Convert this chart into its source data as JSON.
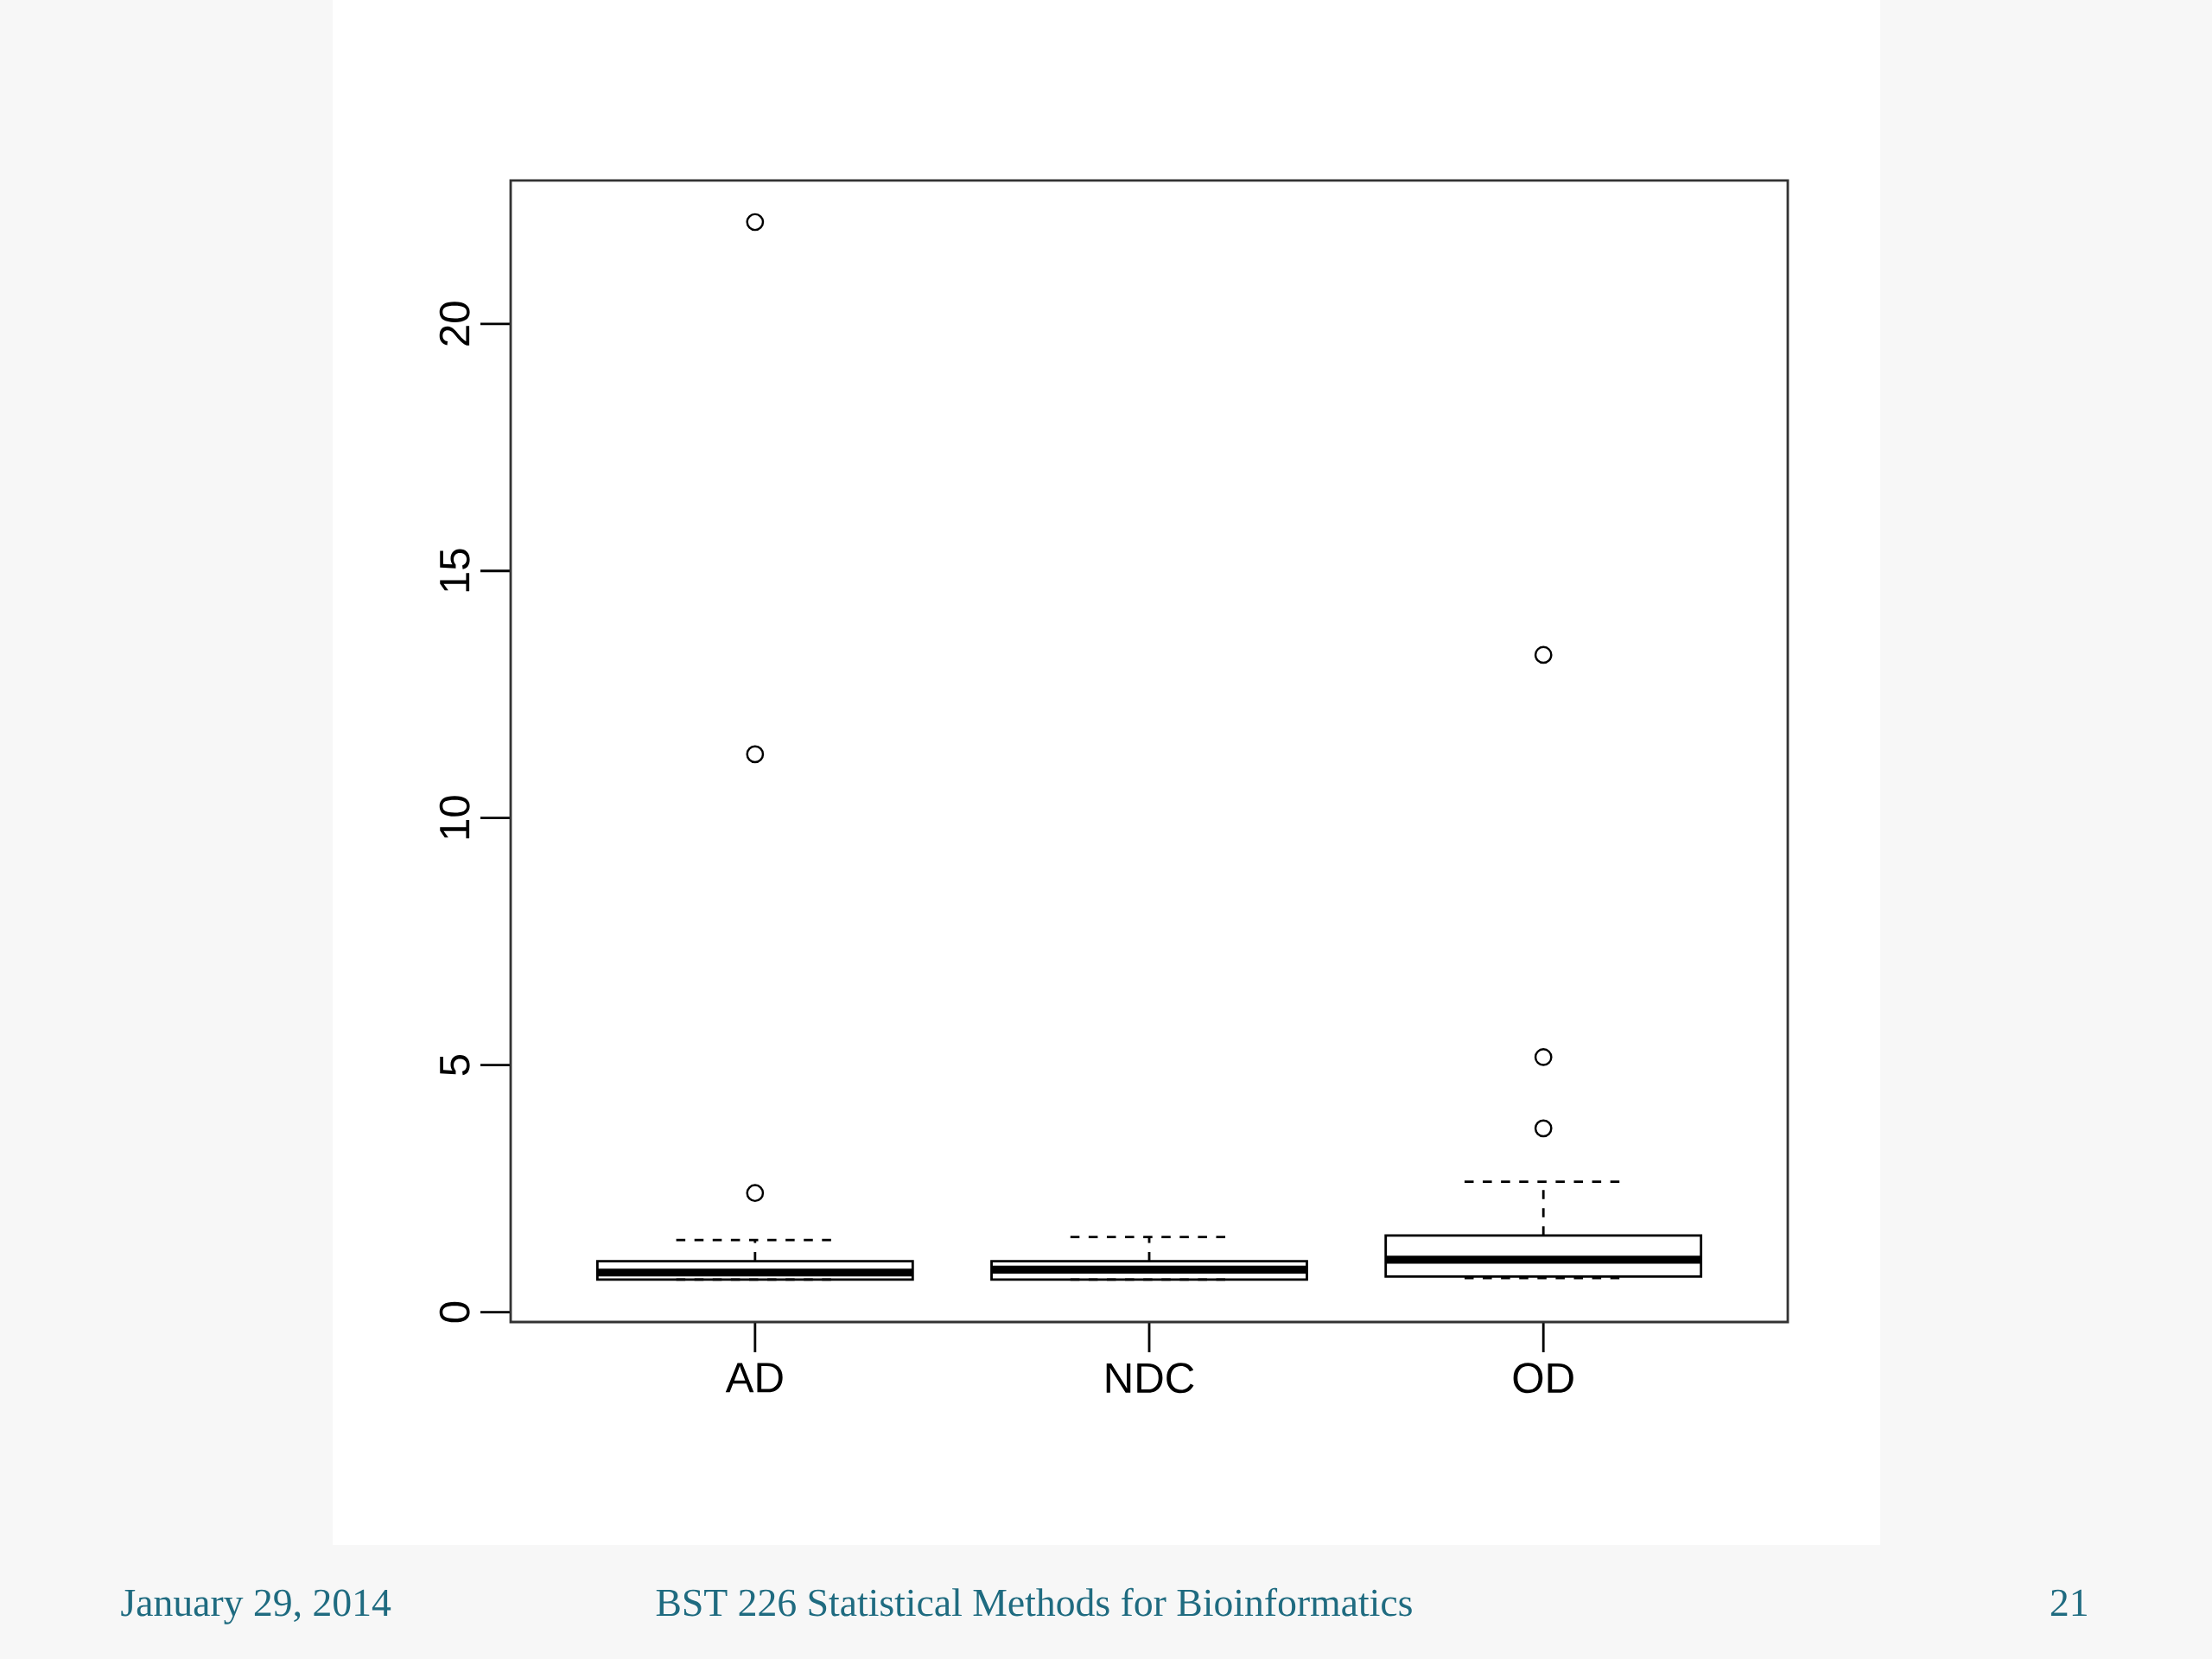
{
  "chart_data": {
    "type": "box",
    "categories": [
      "AD",
      "NDC",
      "OD"
    ],
    "boxes": [
      {
        "low": 0.66,
        "q1": 0.66,
        "median": 0.8,
        "q3": 1.03,
        "high": 1.46,
        "outliers": [
          2.41,
          11.29,
          22.06
        ]
      },
      {
        "low": 0.66,
        "q1": 0.66,
        "median": 0.86,
        "q3": 1.03,
        "high": 1.52
      },
      {
        "low": 0.69,
        "q1": 0.72,
        "median": 1.06,
        "q3": 1.55,
        "high": 2.64,
        "outliers": [
          3.72,
          5.16,
          13.3
        ]
      }
    ],
    "ylim": [
      -0.2,
      22.9
    ],
    "yticks": [
      0,
      5,
      10,
      15,
      20
    ],
    "annotations": [
      "January 29, 2014",
      "BST 226 Statistical Methods for Bioinformatics",
      "21"
    ]
  }
}
